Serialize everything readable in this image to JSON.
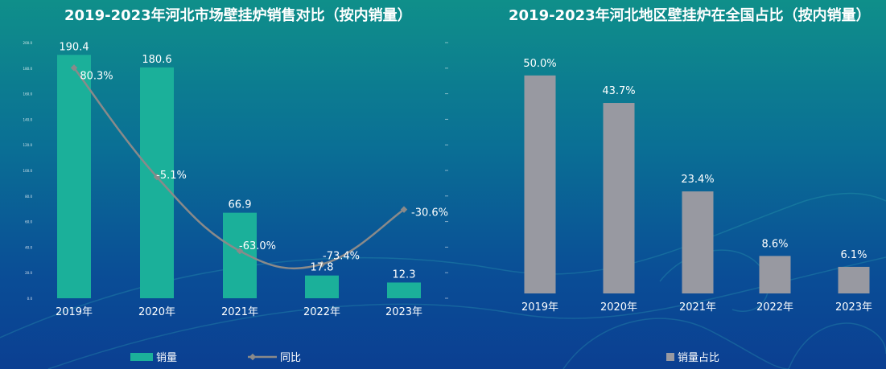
{
  "chart_data": [
    {
      "type": "bar",
      "title": "2019-2023年河北市场壁挂炉销售对比（按内销量）",
      "categories": [
        "2019年",
        "2020年",
        "2021年",
        "2022年",
        "2023年"
      ],
      "series": [
        {
          "name": "销量",
          "type": "bar",
          "values": [
            190.4,
            180.6,
            66.9,
            17.8,
            12.3
          ],
          "labels": [
            "190.4",
            "180.6",
            "66.9",
            "17.8",
            "12.3"
          ]
        },
        {
          "name": "同比",
          "type": "line",
          "values": [
            80.3,
            -5.1,
            -63.0,
            -73.4,
            -30.6
          ],
          "labels": [
            "80.3%",
            "-5.1%",
            "-63.0%",
            "-73.4%",
            "-30.6%"
          ]
        }
      ],
      "yticks": [
        "0.0",
        "20.0",
        "40.0",
        "60.0",
        "80.0",
        "100.0",
        "120.0",
        "140.0",
        "160.0",
        "180.0",
        "200.0"
      ],
      "ylim": [
        0,
        200
      ],
      "y2lim": [
        -100,
        100
      ],
      "colors": {
        "bar": "#1bb09a",
        "line": "#8a8a8a"
      },
      "legend": {
        "position": "bottom",
        "items": [
          "销量",
          "同比"
        ]
      }
    },
    {
      "type": "bar",
      "title": "2019-2023年河北地区壁挂炉在全国占比（按内销量）",
      "categories": [
        "2019年",
        "2020年",
        "2021年",
        "2022年",
        "2023年"
      ],
      "series": [
        {
          "name": "销量占比",
          "type": "bar",
          "values": [
            50.0,
            43.7,
            23.4,
            8.6,
            6.1
          ],
          "labels": [
            "50.0%",
            "43.7%",
            "23.4%",
            "8.6%",
            "6.1%"
          ]
        }
      ],
      "ylim": [
        0,
        52
      ],
      "colors": {
        "bar": "#9899a1"
      },
      "legend": {
        "position": "bottom",
        "items": [
          "销量占比"
        ]
      }
    }
  ]
}
